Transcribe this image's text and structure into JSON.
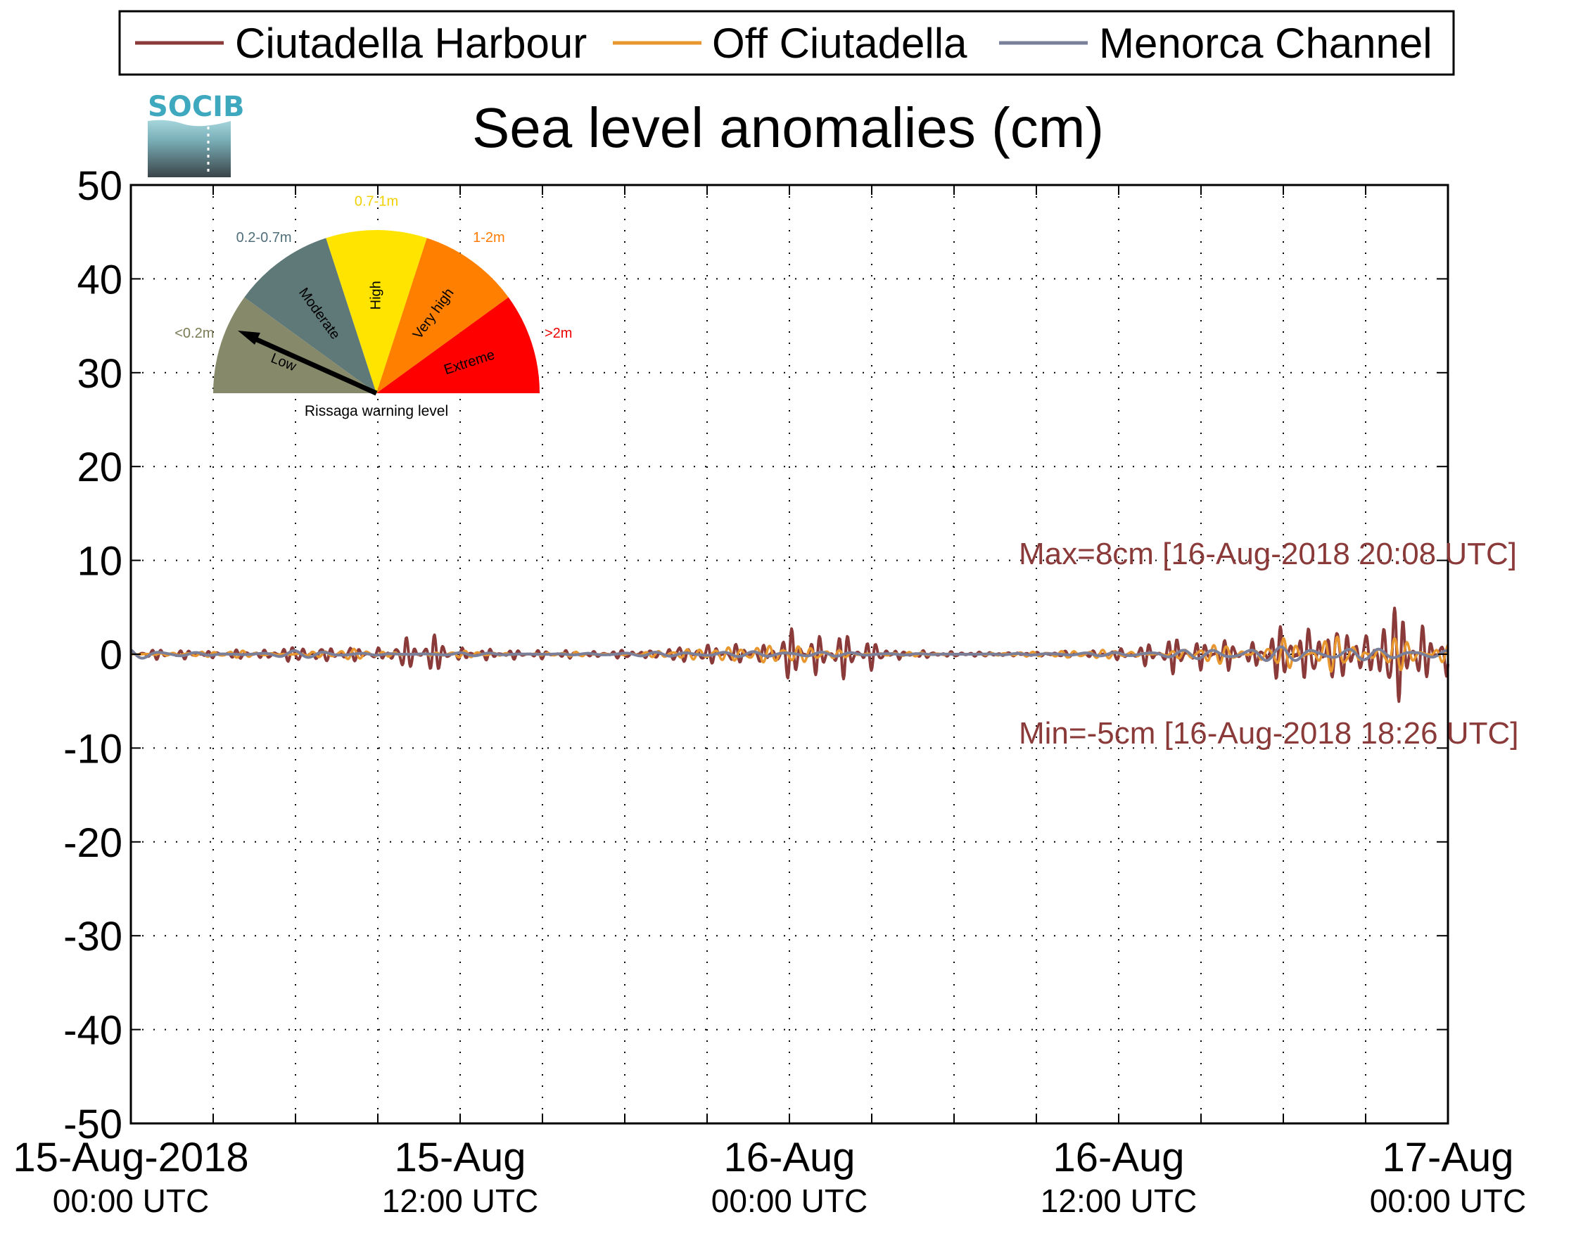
{
  "chart_data": {
    "type": "line",
    "title": "Sea level anomalies (cm)",
    "xlabel": "",
    "ylabel": "",
    "ylim": [
      -50,
      50
    ],
    "yticks": [
      50,
      40,
      30,
      20,
      10,
      0,
      -10,
      -20,
      -30,
      -40,
      -50
    ],
    "xlim": [
      "2018-08-15T00:00Z",
      "2018-08-17T00:00Z"
    ],
    "xticks": [
      {
        "t": "2018-08-15T00:00Z",
        "line1": "15-Aug-2018",
        "line2": "00:00 UTC"
      },
      {
        "t": "2018-08-15T12:00Z",
        "line1": "15-Aug",
        "line2": "12:00 UTC"
      },
      {
        "t": "2018-08-16T00:00Z",
        "line1": "16-Aug",
        "line2": "00:00 UTC"
      },
      {
        "t": "2018-08-16T12:00Z",
        "line1": "16-Aug",
        "line2": "12:00 UTC"
      },
      {
        "t": "2018-08-17T00:00Z",
        "line1": "17-Aug",
        "line2": "00:00 UTC"
      }
    ],
    "grid": true,
    "legend_position": "top",
    "series": [
      {
        "name": "Ciutadella Harbour",
        "color": "#8B3A3A",
        "x": [
          "2018-08-15T00:00Z",
          "2018-08-15T01:00Z",
          "2018-08-15T02:00Z",
          "2018-08-15T03:00Z",
          "2018-08-15T04:00Z",
          "2018-08-15T05:00Z",
          "2018-08-15T06:00Z",
          "2018-08-15T07:00Z",
          "2018-08-15T08:00Z",
          "2018-08-15T09:00Z",
          "2018-08-15T10:00Z",
          "2018-08-15T11:00Z",
          "2018-08-15T12:00Z",
          "2018-08-15T13:00Z",
          "2018-08-15T14:00Z",
          "2018-08-15T15:00Z",
          "2018-08-15T16:00Z",
          "2018-08-15T17:00Z",
          "2018-08-15T18:00Z",
          "2018-08-15T19:00Z",
          "2018-08-15T20:00Z",
          "2018-08-15T21:00Z",
          "2018-08-15T22:00Z",
          "2018-08-15T23:00Z",
          "2018-08-16T00:00Z",
          "2018-08-16T01:00Z",
          "2018-08-16T02:00Z",
          "2018-08-16T03:00Z",
          "2018-08-16T04:00Z",
          "2018-08-16T05:00Z",
          "2018-08-16T06:00Z",
          "2018-08-16T07:00Z",
          "2018-08-16T08:00Z",
          "2018-08-16T09:00Z",
          "2018-08-16T10:00Z",
          "2018-08-16T11:00Z",
          "2018-08-16T12:00Z",
          "2018-08-16T13:00Z",
          "2018-08-16T14:00Z",
          "2018-08-16T15:00Z",
          "2018-08-16T16:00Z",
          "2018-08-16T17:00Z",
          "2018-08-16T18:00Z",
          "2018-08-16T19:00Z",
          "2018-08-16T20:00Z",
          "2018-08-16T21:00Z",
          "2018-08-16T22:00Z",
          "2018-08-16T23:00Z",
          "2018-08-17T00:00Z"
        ],
        "y": [
          0.0,
          -0.6,
          0.6,
          -0.5,
          0.7,
          -0.8,
          1.5,
          -1.4,
          1.2,
          -1.0,
          2.2,
          -2.3,
          0.8,
          -0.7,
          0.6,
          -0.6,
          0.6,
          -0.5,
          0.8,
          -0.9,
          1.5,
          -1.6,
          1.4,
          -1.3,
          3.2,
          -2.5,
          2.8,
          -1.9,
          0.7,
          -0.6,
          0.5,
          -0.5,
          0.4,
          -0.4,
          0.5,
          -0.5,
          0.8,
          -1.4,
          2.2,
          -1.8,
          2.0,
          -1.8,
          4.2,
          -5.0,
          5.5,
          -4.5,
          8.0,
          -4.2,
          3.6
        ]
      },
      {
        "name": "Off Ciutadella",
        "color": "#E8962E",
        "x": [
          "2018-08-15T00:00Z",
          "2018-08-15T04:00Z",
          "2018-08-15T08:00Z",
          "2018-08-15T12:00Z",
          "2018-08-15T16:00Z",
          "2018-08-15T20:00Z",
          "2018-08-16T00:00Z",
          "2018-08-16T04:00Z",
          "2018-08-16T08:00Z",
          "2018-08-16T12:00Z",
          "2018-08-16T16:00Z",
          "2018-08-16T18:00Z",
          "2018-08-16T20:00Z",
          "2018-08-16T22:00Z",
          "2018-08-17T00:00Z"
        ],
        "y": [
          0.0,
          0.4,
          -0.6,
          0.4,
          -0.3,
          0.5,
          1.0,
          -0.3,
          0.2,
          0.5,
          -1.2,
          2.0,
          -2.5,
          2.2,
          -1.2
        ]
      },
      {
        "name": "Menorca Channel",
        "color": "#7A7F9A",
        "x": [
          "2018-08-15T00:00Z",
          "2018-08-15T06:00Z",
          "2018-08-15T12:00Z",
          "2018-08-15T18:00Z",
          "2018-08-16T00:00Z",
          "2018-08-16T06:00Z",
          "2018-08-16T12:00Z",
          "2018-08-16T18:00Z",
          "2018-08-17T00:00Z"
        ],
        "y": [
          -0.6,
          0.4,
          -0.2,
          0.2,
          0.3,
          0.0,
          0.2,
          0.8,
          0.4
        ]
      }
    ],
    "annotations": {
      "max": "Max=8cm [16-Aug-2018 20:08 UTC]",
      "min": "Min=-5cm [16-Aug-2018 18:26 UTC]",
      "color": "#8B3A3A"
    }
  },
  "logo": {
    "text": "SOCIB"
  },
  "gauge": {
    "caption": "Rissaga warning level",
    "arrow_level": "Low",
    "segments": [
      {
        "level": "Low",
        "range": "<0.2m",
        "color": "#878A6A",
        "range_color": "#7A7B55"
      },
      {
        "level": "Moderate",
        "range": "0.2-0.7m",
        "color": "#5F7878",
        "range_color": "#4F6E7A"
      },
      {
        "level": "High",
        "range": "0.7-1m",
        "color": "#FFE400",
        "range_color": "#F2D000"
      },
      {
        "level": "Very high",
        "range": "1-2m",
        "color": "#FF8000",
        "range_color": "#FF7A00"
      },
      {
        "level": "Extreme",
        "range": ">2m",
        "color": "#FF0000",
        "range_color": "#EE0000"
      }
    ]
  }
}
